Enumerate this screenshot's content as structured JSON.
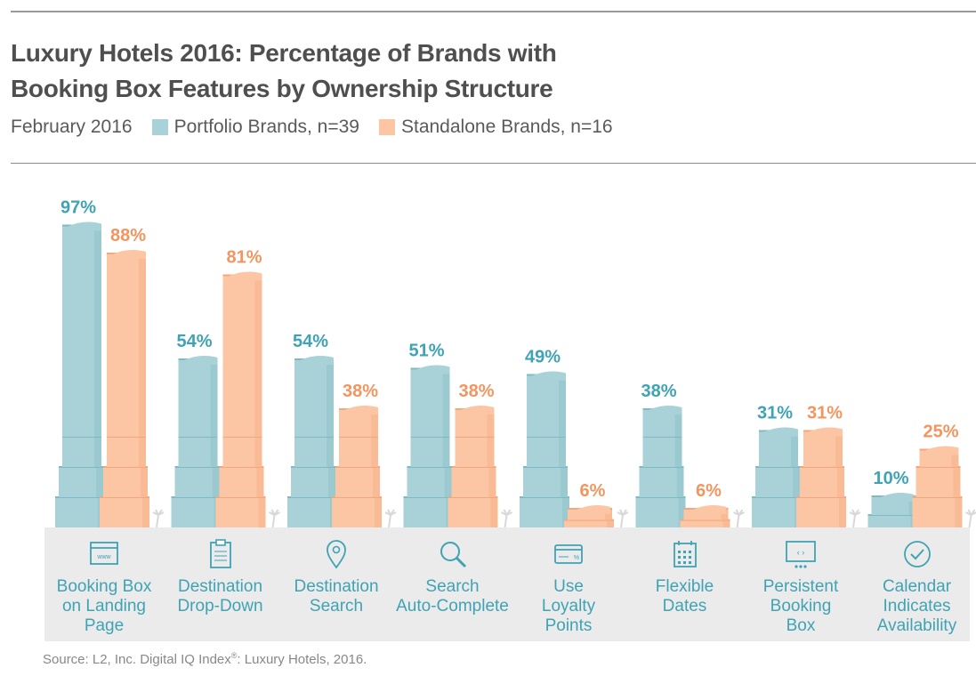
{
  "title_line1": "Luxury Hotels 2016: Percentage of Brands with",
  "title_line2": "Booking Box Features by Ownership Structure",
  "date": "February 2016",
  "legend": {
    "portfolio": "Portfolio Brands, n=39",
    "standalone": "Standalone Brands, n=16"
  },
  "colors": {
    "portfolio": "#a9d2d8",
    "portfolio_label": "#3fa3b4",
    "standalone": "#fcc6a4",
    "standalone_label": "#f2955f"
  },
  "source_prefix": "Source: L2, Inc. Digital IQ Index",
  "source_mark": "®",
  "source_suffix": ": Luxury Hotels, 2016.",
  "chart_data": {
    "type": "bar",
    "title": "Luxury Hotels 2016: Percentage of Brands with Booking Box Features by Ownership Structure",
    "categories": [
      "Booking Box\non Landing\nPage",
      "Destination\nDrop-Down",
      "Destination\nSearch",
      "Search\nAuto-Complete",
      "Use\nLoyalty\nPoints",
      "Flexible\nDates",
      "Persistent\nBooking\nBox",
      "Calendar\nIndicates\nAvailability"
    ],
    "icons": [
      "web-page-icon",
      "clipboard-icon",
      "map-pin-icon",
      "magnifier-icon",
      "card-icon",
      "calendar-grid-icon",
      "screen-icon",
      "checkmark-circle-icon"
    ],
    "series": [
      {
        "name": "Portfolio Brands, n=39",
        "values": [
          97,
          54,
          54,
          51,
          49,
          38,
          31,
          10
        ]
      },
      {
        "name": "Standalone Brands, n=16",
        "values": [
          88,
          81,
          38,
          38,
          6,
          6,
          31,
          25
        ]
      }
    ],
    "value_suffix": "%",
    "ylim": [
      0,
      100
    ],
    "grid": false
  }
}
